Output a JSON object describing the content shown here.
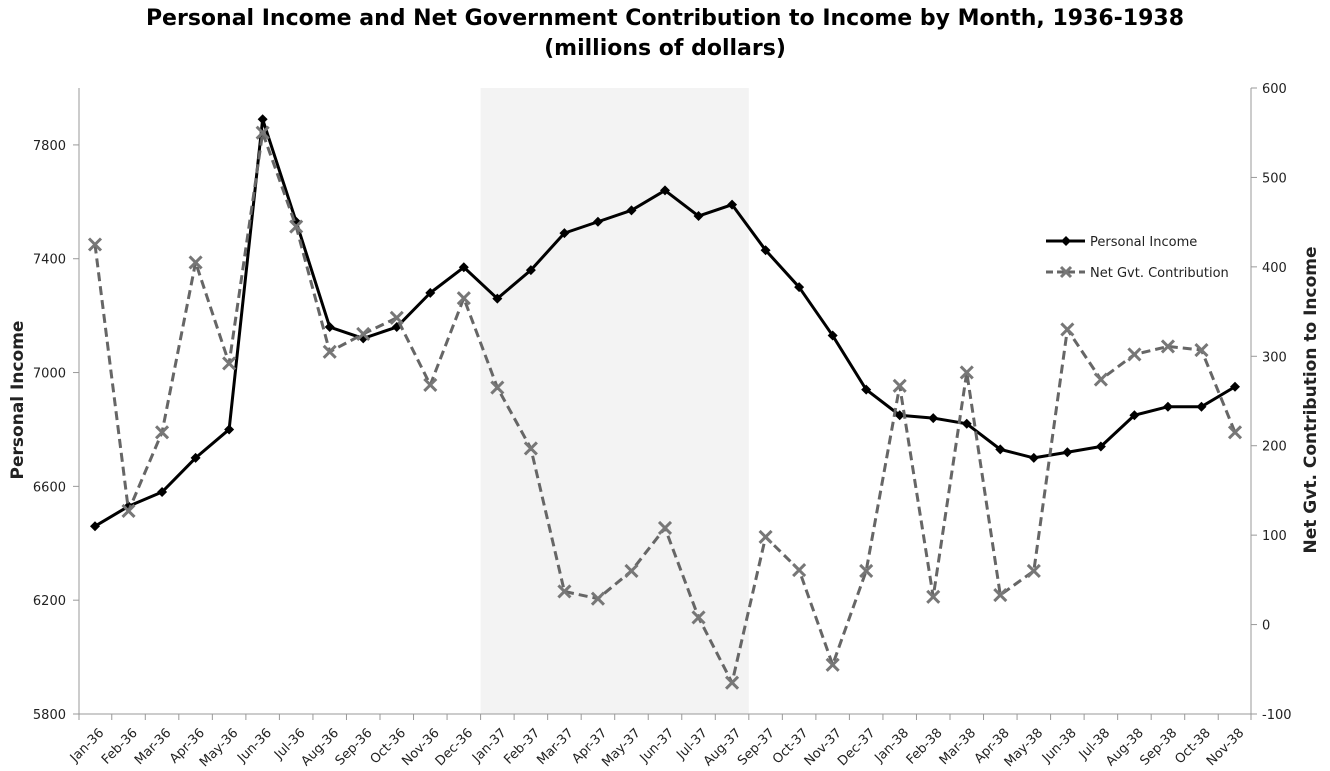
{
  "chart_data": {
    "type": "line",
    "title": "Personal Income and Net Government Contribution to Income by Month, 1936-1938 (millions of dollars)",
    "xlabel": "",
    "ylabel_left": "Personal Income",
    "ylabel_right": "Net Gvt. Contribution to Income",
    "categories": [
      "Jan-36",
      "Feb-36",
      "Mar-36",
      "Apr-36",
      "May-36",
      "Jun-36",
      "Jul-36",
      "Aug-36",
      "Sep-36",
      "Oct-36",
      "Nov-36",
      "Dec-36",
      "Jan-37",
      "Feb-37",
      "Mar-37",
      "Apr-37",
      "May-37",
      "Jun-37",
      "Jul-37",
      "Aug-37",
      "Sep-37",
      "Oct-37",
      "Nov-37",
      "Dec-37",
      "Jan-38",
      "Feb-38",
      "Mar-38",
      "Apr-38",
      "May-38",
      "Jun-38",
      "Jul-38",
      "Aug-38",
      "Sep-38",
      "Oct-38",
      "Nov-38"
    ],
    "y_left": {
      "min": 5800,
      "max": 8000,
      "ticks": [
        5800,
        6200,
        6600,
        7000,
        7400,
        7800
      ]
    },
    "y_right": {
      "min": -100,
      "max": 600,
      "ticks": [
        -100,
        0,
        100,
        200,
        300,
        400,
        500,
        600
      ]
    },
    "shaded_region": {
      "from": "Dec-36",
      "to": "Aug-37"
    },
    "grid": false,
    "legend_position": "right",
    "series": [
      {
        "name": "Personal Income",
        "axis": "left",
        "style": "solid",
        "color": "#000000",
        "values": [
          6460,
          6530,
          6580,
          6700,
          6800,
          7890,
          7530,
          7160,
          7120,
          7160,
          7280,
          7370,
          7260,
          7360,
          7490,
          7530,
          7570,
          7640,
          7550,
          7590,
          7430,
          7300,
          7130,
          6940,
          6850,
          6840,
          6820,
          6730,
          6700,
          6720,
          6740,
          6850,
          6880,
          6880,
          6950
        ]
      },
      {
        "name": "Net Gvt. Contribution",
        "axis": "right",
        "style": "dashed",
        "color": "#666666",
        "values": [
          425,
          127,
          215,
          405,
          292,
          550,
          445,
          305,
          325,
          343,
          268,
          365,
          265,
          197,
          37,
          29,
          60,
          108,
          8,
          -65,
          98,
          61,
          -45,
          60,
          267,
          31,
          282,
          33,
          60,
          330,
          274,
          302,
          311,
          307,
          215
        ]
      }
    ]
  }
}
